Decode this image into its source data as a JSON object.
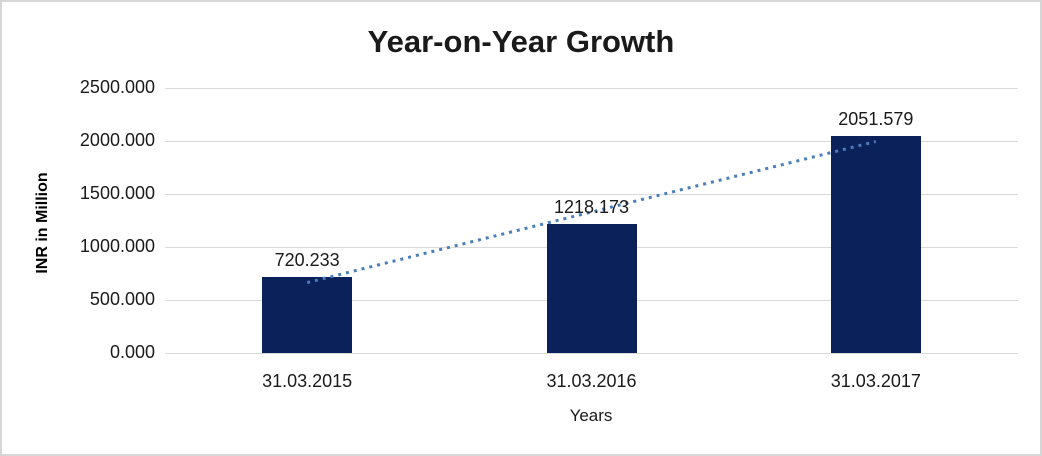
{
  "frame": {
    "background_color": "#ffffff",
    "border_color": "#d6d6d6"
  },
  "chart_data": {
    "type": "bar",
    "title": "Year-on-Year Growth",
    "xlabel": "Years",
    "ylabel": "INR in Million",
    "categories": [
      "31.03.2015",
      "31.03.2016",
      "31.03.2017"
    ],
    "values": [
      720.233,
      1218.173,
      2051.579
    ],
    "data_labels": [
      "720.233",
      "1218.173",
      "2051.579"
    ],
    "y_ticks": [
      "0.000",
      "500.000",
      "1000.000",
      "1500.000",
      "2000.000",
      "2500.000"
    ],
    "y_tick_step": 500,
    "ylim": [
      0,
      2500
    ],
    "grid": true,
    "legend": "none",
    "bar_color": "#0a2159",
    "gridline_color": "#d9d9d9",
    "text_color": "#1a1a1a",
    "trendline": {
      "type": "linear",
      "style": "dotted",
      "color": "#4a7ebb"
    }
  }
}
